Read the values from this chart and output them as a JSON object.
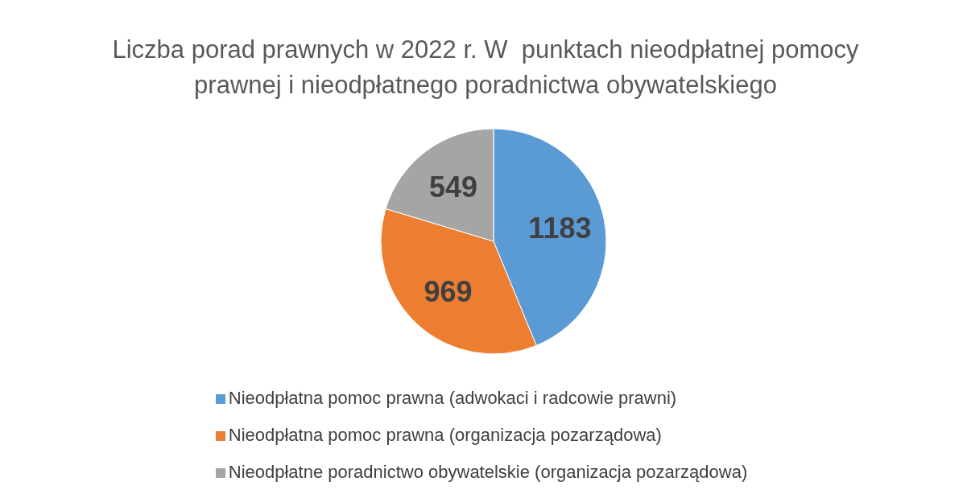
{
  "chart_data": {
    "type": "pie",
    "title": "Liczba porad prawnych w 2022 r. W  punktach nieodpłatnej pomocy prawnej i nieodpłatnego poradnictwa obywatelskiego",
    "categories": [
      "Nieodpłatna pomoc prawna (adwokaci i radcowie prawni)",
      "Nieodpłatna pomoc prawna (organizacja pozarządowa)",
      "Nieodpłatne poradnictwo obywatelskie (organizacja pozarządowa)"
    ],
    "values": [
      1183,
      969,
      549
    ],
    "colors": [
      "#5b9bd5",
      "#ed7d31",
      "#a5a5a5"
    ],
    "data_labels": true,
    "legend": "bottom"
  }
}
